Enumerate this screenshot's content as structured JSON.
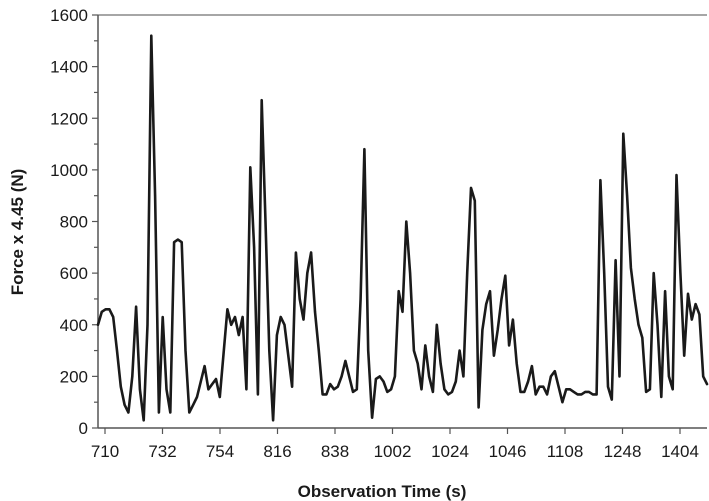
{
  "chart_data": {
    "type": "line",
    "title": "",
    "xlabel": "Observation Time (s)",
    "ylabel": "Force x 4.45 (N)",
    "ylim": [
      0,
      1600
    ],
    "yticks": [
      0,
      200,
      400,
      600,
      800,
      1000,
      1200,
      1400,
      1600
    ],
    "xtick_labels": [
      "710",
      "732",
      "754",
      "816",
      "838",
      "1002",
      "1024",
      "1046",
      "1108",
      "1248",
      "1404"
    ],
    "x_axis_note": "categorical time labels, evenly spaced",
    "grid": false,
    "legend": "none",
    "series_color": "#1a1a1a",
    "series": [
      {
        "values": [
          400,
          450,
          460,
          460,
          430,
          300,
          160,
          90,
          60,
          200,
          470,
          150,
          30,
          400,
          1520,
          900,
          60,
          430,
          150,
          60,
          720,
          730,
          720,
          300,
          60,
          90,
          120,
          180,
          240,
          150,
          170,
          190,
          120,
          290,
          460,
          400,
          430,
          360,
          430,
          150,
          1010,
          700,
          130,
          1270,
          800,
          300,
          30,
          360,
          430,
          400,
          280,
          160,
          680,
          500,
          420,
          600,
          680,
          450,
          300,
          130,
          130,
          170,
          150,
          160,
          200,
          260,
          200,
          140,
          150,
          500,
          1080,
          300,
          40,
          190,
          200,
          180,
          140,
          150,
          200,
          530,
          450,
          800,
          600,
          300,
          250,
          150,
          320,
          200,
          140,
          400,
          250,
          150,
          130,
          140,
          180,
          300,
          200,
          600,
          930,
          880,
          80,
          380,
          480,
          530,
          280,
          380,
          500,
          590,
          320,
          420,
          250,
          140,
          140,
          180,
          240,
          130,
          160,
          160,
          130,
          200,
          220,
          160,
          100,
          150,
          150,
          140,
          130,
          130,
          140,
          140,
          130,
          130,
          960,
          600,
          160,
          110,
          650,
          200,
          1140,
          900,
          620,
          500,
          400,
          350,
          140,
          150,
          600,
          400,
          120,
          530,
          200,
          150,
          980,
          600,
          280,
          520,
          420,
          480,
          440,
          200,
          170
        ]
      }
    ]
  }
}
